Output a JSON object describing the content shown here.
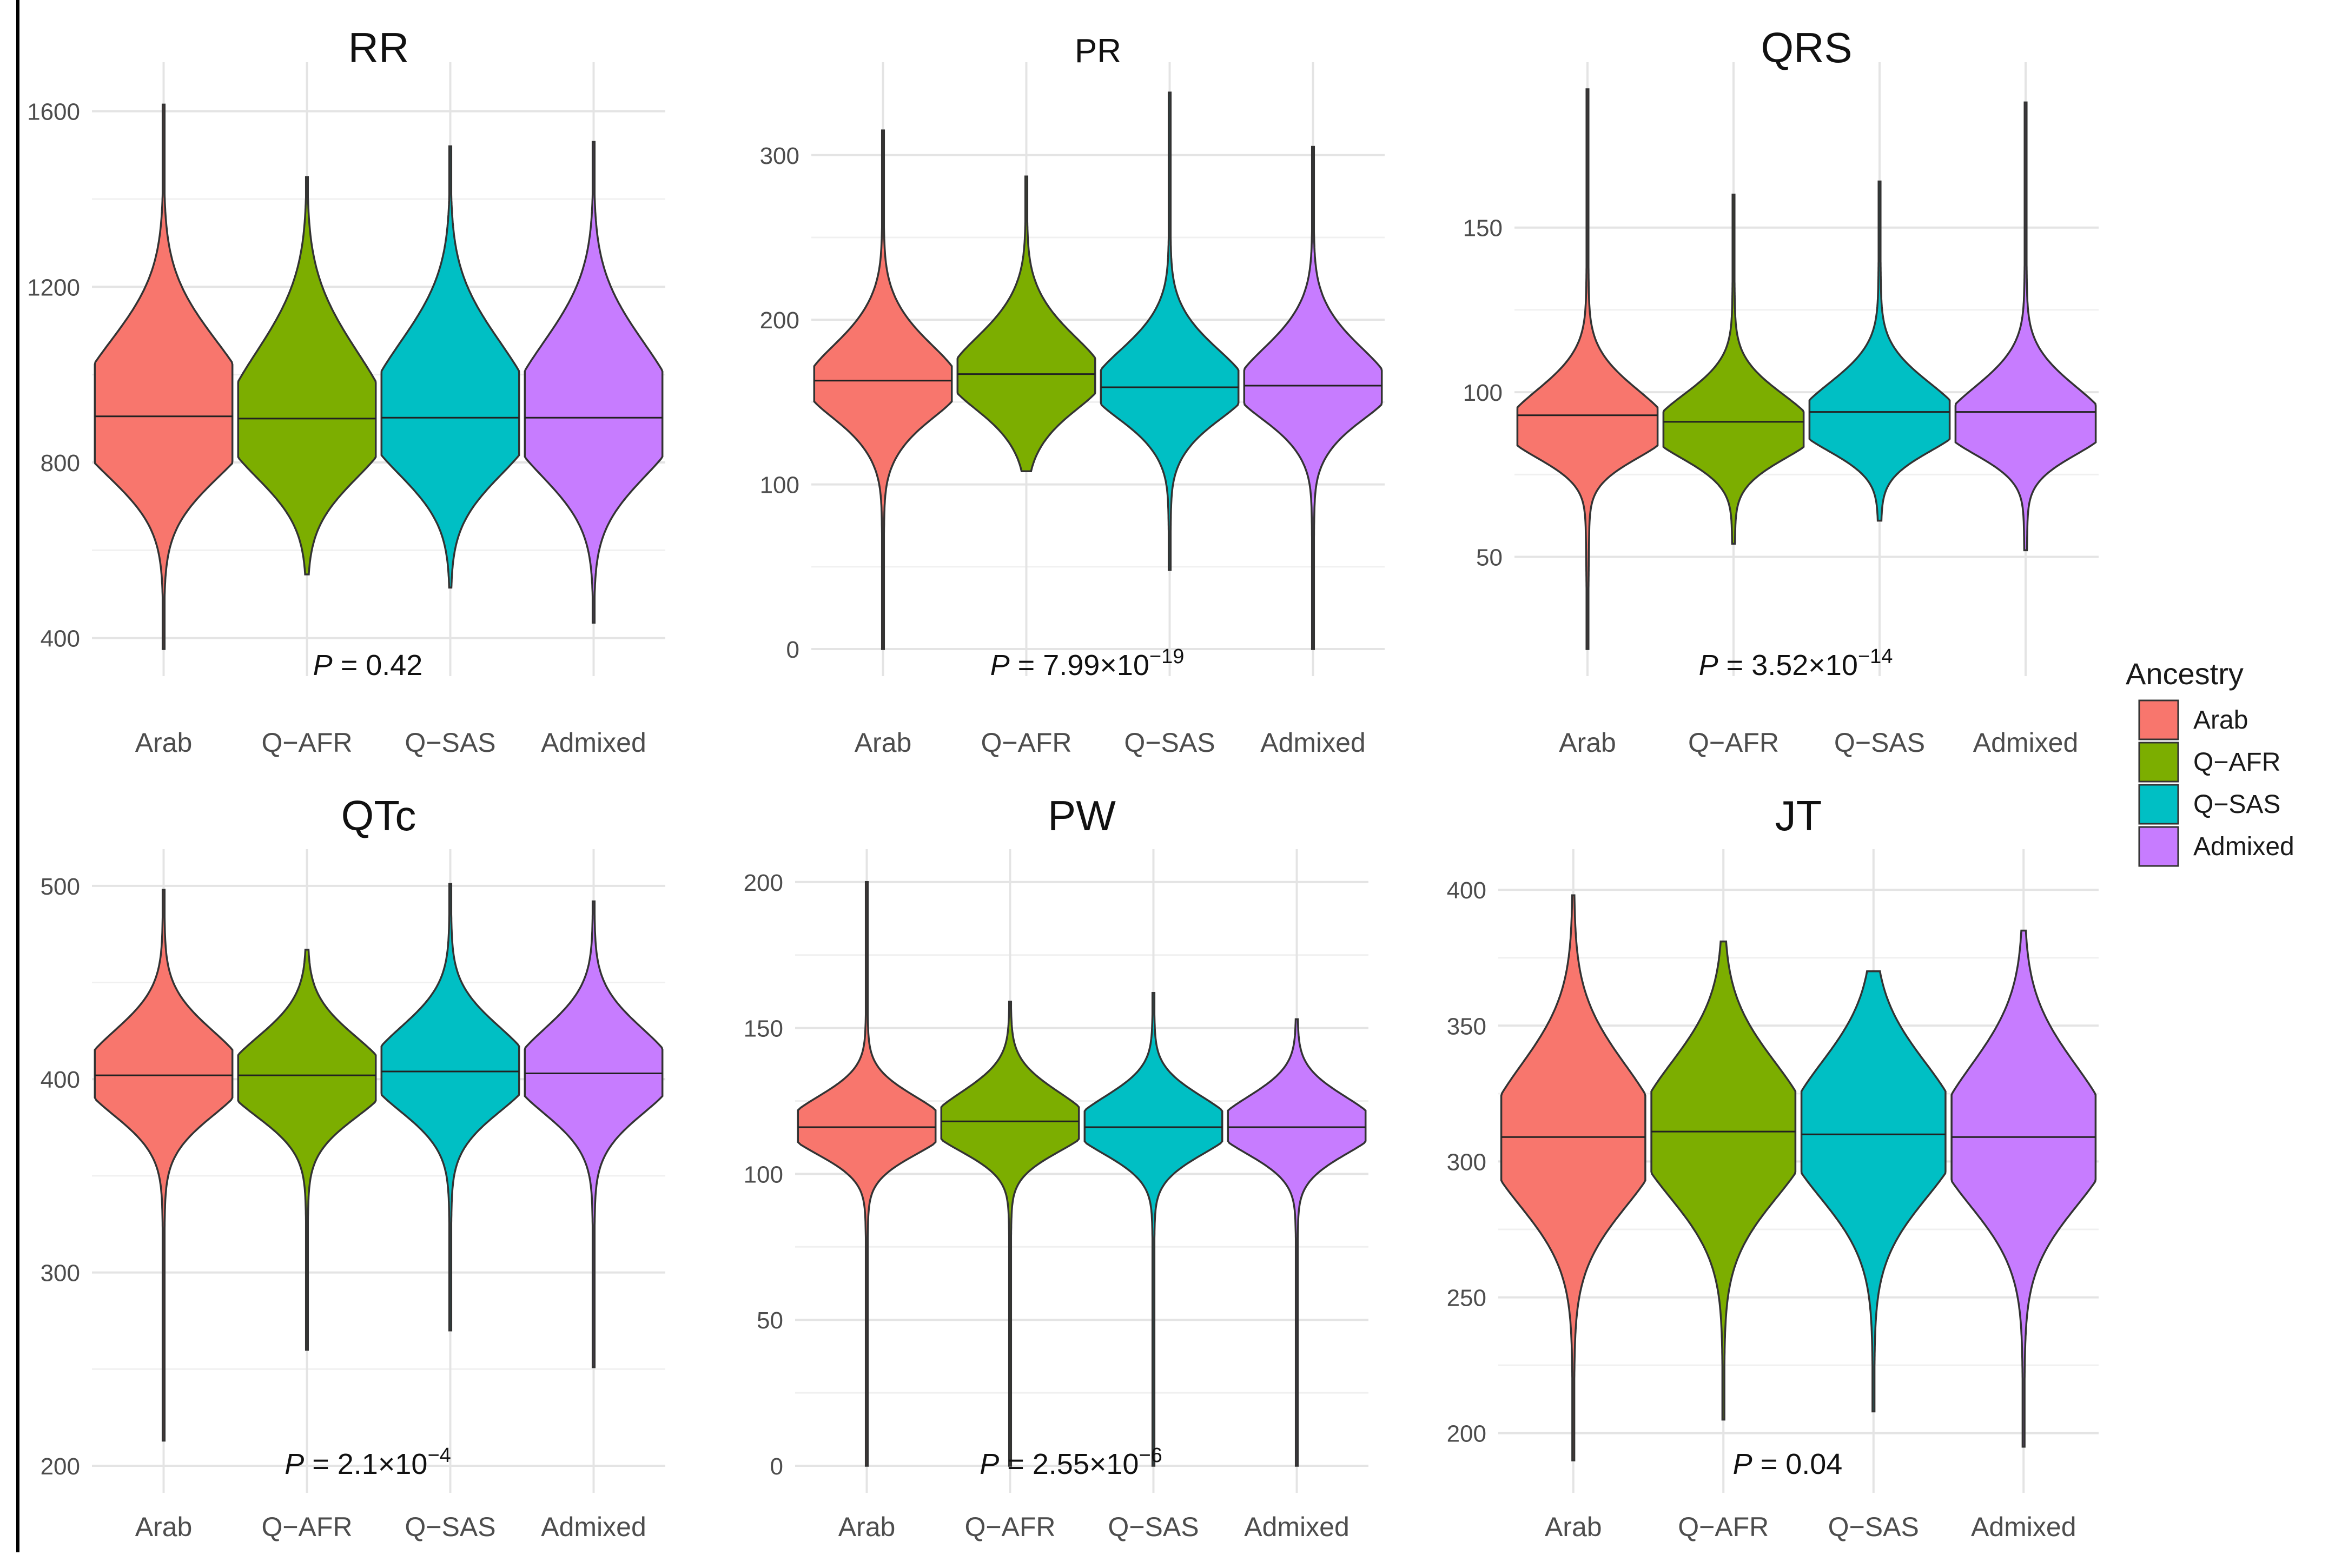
{
  "legend": {
    "title": "Ancestry",
    "items": [
      {
        "label": "Arab",
        "color": "#F8766D"
      },
      {
        "label": "Q−AFR",
        "color": "#7CAE00"
      },
      {
        "label": "Q−SAS",
        "color": "#00BFC4"
      },
      {
        "label": "Admixed",
        "color": "#C77CFF"
      }
    ]
  },
  "chart_data": [
    {
      "type": "violin",
      "title": "RR",
      "categories": [
        "Arab",
        "Q−AFR",
        "Q−SAS",
        "Admixed"
      ],
      "yticks": [
        400,
        800,
        1200,
        1600
      ],
      "ylim": [
        375,
        1650
      ],
      "p_label": "P",
      "p_text": " = 0.42",
      "p_exp": "",
      "series": [
        {
          "name": "Arab",
          "min": 375,
          "max": 1615,
          "median": 905,
          "peak": 900,
          "lo_sd": 110,
          "hi_sd": 150,
          "spread": 190,
          "bulge_y": [
            1030,
            790
          ],
          "bulge_w": 0.72
        },
        {
          "name": "Q−AFR",
          "min": 545,
          "max": 1450,
          "median": 900,
          "peak": 890,
          "lo_sd": 105,
          "hi_sd": 140,
          "spread": 190,
          "bulge_y": [
            1080,
            780
          ],
          "bulge_w": 0.55
        },
        {
          "name": "Q−SAS",
          "min": 515,
          "max": 1520,
          "median": 902,
          "peak": 900,
          "lo_sd": 105,
          "hi_sd": 145,
          "spread": 185,
          "bulge_y": [
            1060,
            780
          ],
          "bulge_w": 0.6
        },
        {
          "name": "Admixed",
          "min": 435,
          "max": 1530,
          "median": 902,
          "peak": 900,
          "lo_sd": 110,
          "hi_sd": 145,
          "spread": 185,
          "bulge_y": [
            1060,
            780
          ],
          "bulge_w": 0.6
        }
      ]
    },
    {
      "type": "violin",
      "title": "PR",
      "categories": [
        "Arab",
        "Q−AFR",
        "Q−SAS",
        "Admixed"
      ],
      "yticks": [
        0,
        100,
        200,
        300
      ],
      "ylim": [
        0,
        340
      ],
      "p_label": "P",
      "p_text": " = 7.99×10",
      "p_exp": "−19",
      "series": [
        {
          "name": "Arab",
          "min": 0,
          "max": 315,
          "median": 163,
          "peak": 160,
          "lo_sd": 18,
          "hi_sd": 22,
          "spread": 52,
          "bulge_y": [
            195,
            130
          ],
          "bulge_w": 0.45
        },
        {
          "name": "Q−AFR",
          "min": 108,
          "max": 287,
          "median": 167,
          "peak": 165,
          "lo_sd": 18,
          "hi_sd": 22,
          "spread": 50,
          "bulge_y": [
            200,
            135
          ],
          "bulge_w": 0.45
        },
        {
          "name": "Q−SAS",
          "min": 48,
          "max": 338,
          "median": 159,
          "peak": 158,
          "lo_sd": 17,
          "hi_sd": 21,
          "spread": 50,
          "bulge_y": [
            190,
            130
          ],
          "bulge_w": 0.45
        },
        {
          "name": "Admixed",
          "min": 0,
          "max": 305,
          "median": 160,
          "peak": 158,
          "lo_sd": 17,
          "hi_sd": 22,
          "spread": 52,
          "bulge_y": [
            192,
            130
          ],
          "bulge_w": 0.45
        }
      ]
    },
    {
      "type": "violin",
      "title": "QRS",
      "categories": [
        "Arab",
        "Q−AFR",
        "Q−SAS",
        "Admixed"
      ],
      "yticks": [
        50,
        100,
        150
      ],
      "ylim": [
        22,
        192
      ],
      "p_label": "P",
      "p_text": " = 3.52×10",
      "p_exp": "−14",
      "series": [
        {
          "name": "Arab",
          "min": 22,
          "max": 192,
          "median": 93,
          "peak": 89,
          "lo_sd": 7.5,
          "hi_sd": 10,
          "spread": 28,
          "bulge_y": [
            103,
            80
          ],
          "bulge_w": 0.5
        },
        {
          "name": "Q−AFR",
          "min": 54,
          "max": 160,
          "median": 91,
          "peak": 88,
          "lo_sd": 7,
          "hi_sd": 9.5,
          "spread": 26,
          "bulge_y": [
            100,
            78
          ],
          "bulge_w": 0.5
        },
        {
          "name": "Q−SAS",
          "min": 61,
          "max": 164,
          "median": 94,
          "peak": 91,
          "lo_sd": 7.5,
          "hi_sd": 10,
          "spread": 28,
          "bulge_y": [
            104,
            82
          ],
          "bulge_w": 0.5
        },
        {
          "name": "Admixed",
          "min": 52,
          "max": 188,
          "median": 94,
          "peak": 90,
          "lo_sd": 7.5,
          "hi_sd": 10,
          "spread": 28,
          "bulge_y": [
            104,
            81
          ],
          "bulge_w": 0.5
        }
      ]
    },
    {
      "type": "violin",
      "title": "QTc",
      "categories": [
        "Arab",
        "Q−AFR",
        "Q−SAS",
        "Admixed"
      ],
      "yticks": [
        200,
        300,
        400,
        500
      ],
      "ylim": [
        200,
        505
      ],
      "p_label": "P",
      "p_text": " = 2.1×10",
      "p_exp": "−4",
      "series": [
        {
          "name": "Arab",
          "min": 213,
          "max": 498,
          "median": 402,
          "peak": 402,
          "lo_sd": 18,
          "hi_sd": 20,
          "spread": 45,
          "bulge_y": [
            425,
            380
          ],
          "bulge_w": 0.45
        },
        {
          "name": "Q−AFR",
          "min": 260,
          "max": 467,
          "median": 402,
          "peak": 400,
          "lo_sd": 17,
          "hi_sd": 19,
          "spread": 42,
          "bulge_y": [
            422,
            380
          ],
          "bulge_w": 0.45
        },
        {
          "name": "Q−SAS",
          "min": 270,
          "max": 501,
          "median": 404,
          "peak": 404,
          "lo_sd": 18,
          "hi_sd": 20,
          "spread": 45,
          "bulge_y": [
            427,
            382
          ],
          "bulge_w": 0.45
        },
        {
          "name": "Admixed",
          "min": 251,
          "max": 492,
          "median": 403,
          "peak": 403,
          "lo_sd": 18,
          "hi_sd": 20,
          "spread": 45,
          "bulge_y": [
            427,
            380
          ],
          "bulge_w": 0.45
        }
      ]
    },
    {
      "type": "violin",
      "title": "PW",
      "categories": [
        "Arab",
        "Q−AFR",
        "Q−SAS",
        "Admixed"
      ],
      "yticks": [
        0,
        50,
        100,
        150,
        200
      ],
      "ylim": [
        0,
        202
      ],
      "p_label": "P",
      "p_text": " = 2.55×10",
      "p_exp": "−6",
      "series": [
        {
          "name": "Arab",
          "min": 0,
          "max": 200,
          "median": 116,
          "peak": 116,
          "lo_sd": 8,
          "hi_sd": 9,
          "spread": 22,
          "bulge_y": [
            126,
            106
          ],
          "bulge_w": 0.45
        },
        {
          "name": "Q−AFR",
          "min": 0,
          "max": 159,
          "median": 118,
          "peak": 117,
          "lo_sd": 8,
          "hi_sd": 9.5,
          "spread": 22,
          "bulge_y": [
            129,
            107
          ],
          "bulge_w": 0.45
        },
        {
          "name": "Q−SAS",
          "min": 0,
          "max": 162,
          "median": 116,
          "peak": 116,
          "lo_sd": 8,
          "hi_sd": 9,
          "spread": 22,
          "bulge_y": [
            127,
            105
          ],
          "bulge_w": 0.45
        },
        {
          "name": "Admixed",
          "min": 0,
          "max": 153,
          "median": 116,
          "peak": 116,
          "lo_sd": 8,
          "hi_sd": 9,
          "spread": 22,
          "bulge_y": [
            127,
            105
          ],
          "bulge_w": 0.45
        }
      ]
    },
    {
      "type": "violin",
      "title": "JT",
      "categories": [
        "Arab",
        "Q−AFR",
        "Q−SAS",
        "Admixed"
      ],
      "yticks": [
        200,
        250,
        300,
        350,
        400
      ],
      "ylim": [
        188,
        405
      ],
      "p_label": "P",
      "p_text": " = 0.04",
      "p_exp": "",
      "series": [
        {
          "name": "Arab",
          "min": 190,
          "max": 398,
          "median": 309,
          "peak": 308,
          "lo_sd": 22,
          "hi_sd": 25,
          "spread": 48,
          "bulge_y": [
            330,
            285
          ],
          "bulge_w": 0.4
        },
        {
          "name": "Q−AFR",
          "min": 205,
          "max": 381,
          "median": 311,
          "peak": 310,
          "lo_sd": 21,
          "hi_sd": 24,
          "spread": 46,
          "bulge_y": [
            330,
            285
          ],
          "bulge_w": 0.4
        },
        {
          "name": "Q−SAS",
          "min": 208,
          "max": 370,
          "median": 310,
          "peak": 310,
          "lo_sd": 21,
          "hi_sd": 24,
          "spread": 46,
          "bulge_y": [
            330,
            285
          ],
          "bulge_w": 0.4
        },
        {
          "name": "Admixed",
          "min": 195,
          "max": 385,
          "median": 309,
          "peak": 308,
          "lo_sd": 22,
          "hi_sd": 25,
          "spread": 48,
          "bulge_y": [
            330,
            285
          ],
          "bulge_w": 0.4
        }
      ]
    }
  ]
}
